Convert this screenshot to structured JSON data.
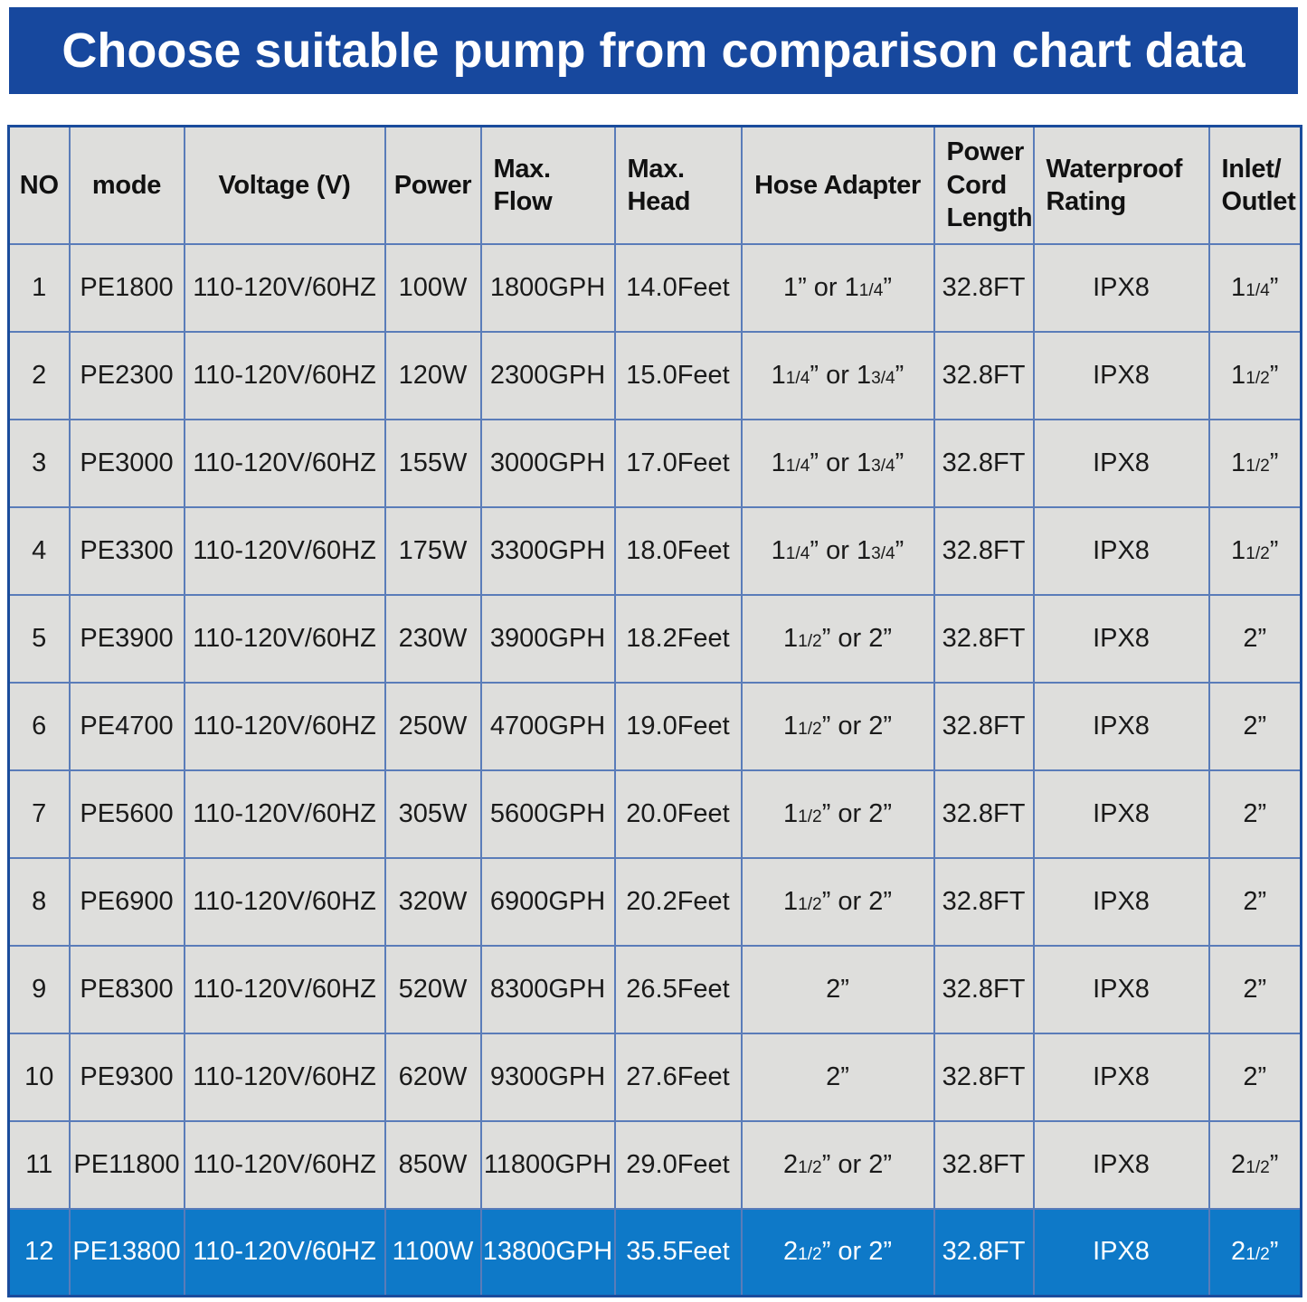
{
  "banner": {
    "title": "Choose suitable pump from comparison chart data"
  },
  "colors": {
    "banner_bg": "#17489E",
    "banner_text": "#FFFFFF",
    "outer_border": "#1A4C9C",
    "grid_line": "#5A7CB9",
    "cell_bg": "#DEDEDC",
    "header_text": "#111111",
    "body_text": "#1A1A1A",
    "highlight_bg": "#0E79C8",
    "highlight_text": "#FFFFFF"
  },
  "table": {
    "columns": [
      {
        "key": "no",
        "label": "NO",
        "header_align": "center"
      },
      {
        "key": "mode",
        "label": "mode",
        "header_align": "center"
      },
      {
        "key": "voltage",
        "label": "Voltage (V)",
        "header_align": "center"
      },
      {
        "key": "power",
        "label": "Power",
        "header_align": "center"
      },
      {
        "key": "max_flow",
        "label": "Max.\nFlow",
        "header_align": "left"
      },
      {
        "key": "max_head",
        "label": "Max.\nHead",
        "header_align": "left"
      },
      {
        "key": "hose_adapter",
        "label": "Hose Adapter",
        "header_align": "center"
      },
      {
        "key": "power_cord_length",
        "label": "Power\nCord\nLength",
        "header_align": "left"
      },
      {
        "key": "waterproof_rating",
        "label": "Waterproof\nRating",
        "header_align": "left"
      },
      {
        "key": "inlet_outlet",
        "label": "Inlet/\nOutlet",
        "header_align": "left"
      }
    ],
    "highlight_row_index": 11,
    "rows": [
      {
        "no": "1",
        "mode": "PE1800",
        "voltage": "110-120V/60HZ",
        "power": "100W",
        "max_flow": "1800GPH",
        "max_head": "14.0Feet",
        "hose_adapter": "1” or 1¼”",
        "power_cord_length": "32.8FT",
        "waterproof_rating": "IPX8",
        "inlet_outlet": "1¼”"
      },
      {
        "no": "2",
        "mode": "PE2300",
        "voltage": "110-120V/60HZ",
        "power": "120W",
        "max_flow": "2300GPH",
        "max_head": "15.0Feet",
        "hose_adapter": "1¼” or 1¾”",
        "power_cord_length": "32.8FT",
        "waterproof_rating": "IPX8",
        "inlet_outlet": "1½”"
      },
      {
        "no": "3",
        "mode": "PE3000",
        "voltage": "110-120V/60HZ",
        "power": "155W",
        "max_flow": "3000GPH",
        "max_head": "17.0Feet",
        "hose_adapter": "1¼” or 1¾”",
        "power_cord_length": "32.8FT",
        "waterproof_rating": "IPX8",
        "inlet_outlet": "1½”"
      },
      {
        "no": "4",
        "mode": "PE3300",
        "voltage": "110-120V/60HZ",
        "power": "175W",
        "max_flow": "3300GPH",
        "max_head": "18.0Feet",
        "hose_adapter": "1¼” or 1¾”",
        "power_cord_length": "32.8FT",
        "waterproof_rating": "IPX8",
        "inlet_outlet": "1½”"
      },
      {
        "no": "5",
        "mode": "PE3900",
        "voltage": "110-120V/60HZ",
        "power": "230W",
        "max_flow": "3900GPH",
        "max_head": "18.2Feet",
        "hose_adapter": "1½” or 2”",
        "power_cord_length": "32.8FT",
        "waterproof_rating": "IPX8",
        "inlet_outlet": "2”"
      },
      {
        "no": "6",
        "mode": "PE4700",
        "voltage": "110-120V/60HZ",
        "power": "250W",
        "max_flow": "4700GPH",
        "max_head": "19.0Feet",
        "hose_adapter": "1½” or 2”",
        "power_cord_length": "32.8FT",
        "waterproof_rating": "IPX8",
        "inlet_outlet": "2”"
      },
      {
        "no": "7",
        "mode": "PE5600",
        "voltage": "110-120V/60HZ",
        "power": "305W",
        "max_flow": "5600GPH",
        "max_head": "20.0Feet",
        "hose_adapter": "1½” or 2”",
        "power_cord_length": "32.8FT",
        "waterproof_rating": "IPX8",
        "inlet_outlet": "2”"
      },
      {
        "no": "8",
        "mode": "PE6900",
        "voltage": "110-120V/60HZ",
        "power": "320W",
        "max_flow": "6900GPH",
        "max_head": "20.2Feet",
        "hose_adapter": "1½” or 2”",
        "power_cord_length": "32.8FT",
        "waterproof_rating": "IPX8",
        "inlet_outlet": "2”"
      },
      {
        "no": "9",
        "mode": "PE8300",
        "voltage": "110-120V/60HZ",
        "power": "520W",
        "max_flow": "8300GPH",
        "max_head": "26.5Feet",
        "hose_adapter": "2”",
        "power_cord_length": "32.8FT",
        "waterproof_rating": "IPX8",
        "inlet_outlet": "2”"
      },
      {
        "no": "10",
        "mode": "PE9300",
        "voltage": "110-120V/60HZ",
        "power": "620W",
        "max_flow": "9300GPH",
        "max_head": "27.6Feet",
        "hose_adapter": "2”",
        "power_cord_length": "32.8FT",
        "waterproof_rating": "IPX8",
        "inlet_outlet": "2”"
      },
      {
        "no": "11",
        "mode": "PE11800",
        "voltage": "110-120V/60HZ",
        "power": "850W",
        "max_flow": "11800GPH",
        "max_head": "29.0Feet",
        "hose_adapter": "2½” or 2”",
        "power_cord_length": "32.8FT",
        "waterproof_rating": "IPX8",
        "inlet_outlet": "2½”"
      },
      {
        "no": "12",
        "mode": "PE13800",
        "voltage": "110-120V/60HZ",
        "power": "1100W",
        "max_flow": "13800GPH",
        "max_head": "35.5Feet",
        "hose_adapter": "2½” or 2”",
        "power_cord_length": "32.8FT",
        "waterproof_rating": "IPX8",
        "inlet_outlet": "2½”"
      }
    ]
  }
}
